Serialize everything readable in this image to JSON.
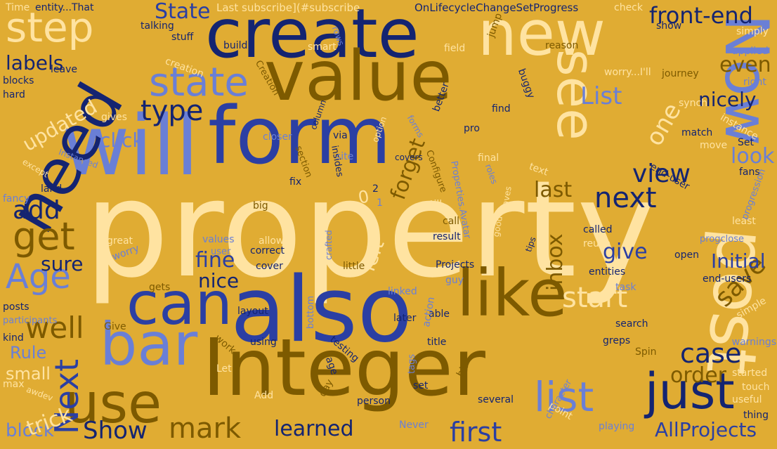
{
  "background_color": "#e0ac33",
  "palette": {
    "dark_navy": "#142471",
    "periwinkle": "#6a7fd6",
    "cream": "#ffe3a1",
    "brown": "#7d5a00",
    "royal_blue": "#2b3fa3"
  },
  "words": [
    "property",
    "also",
    "Integer",
    "will",
    "form",
    "create",
    "value",
    "new",
    "need",
    "like",
    "Now",
    "post",
    "can",
    "bar",
    "see",
    "use",
    "just",
    "step",
    "state",
    "list",
    "mark",
    "Show",
    "first",
    "learned",
    "Next",
    "get",
    "well",
    "Age",
    "add",
    "type",
    "view",
    "next",
    "start",
    "case",
    "save",
    "front-end",
    "State",
    "Initial",
    "AllProjects",
    "order",
    "nice",
    "give",
    "fine",
    "sure",
    "labels",
    "updated",
    "forget",
    "click",
    "look",
    "one",
    "List",
    "even",
    "nicely",
    "left",
    "last",
    "inbox",
    "block",
    "small",
    "trick",
    "Rule",
    "Last subscribe](#subscribe",
    "OnLifecycleChangeSetProgress",
    "entity...That",
    "Time",
    "check",
    "show",
    "simply",
    "applied",
    "right",
    "journey",
    "reason",
    "worry...I'll",
    "synch",
    "instance",
    "match",
    "move",
    "Set",
    "end-user",
    "fans",
    "progression",
    "least",
    "progclose",
    "called",
    "reuse",
    "tips",
    "open",
    "entities",
    "end-users",
    "task",
    "simple",
    "warnings",
    "greps",
    "search",
    "started",
    "touch",
    "useful",
    "thing",
    "playing",
    "point",
    "character",
    "several",
    "person",
    "day",
    "set",
    "Add",
    "Let",
    "Never",
    "tags",
    "bit",
    "title",
    "using",
    "testing",
    "age",
    "work",
    "Give",
    "kind",
    "participants",
    "posts",
    "gets",
    "great",
    "worry",
    "values",
    "user",
    "allow",
    "correct",
    "cover",
    "little",
    "Projects",
    "result",
    "guy",
    "linked",
    "able",
    "action",
    "later",
    "layout",
    "bottom",
    "created",
    "crafted",
    "call",
    "till",
    "big",
    "land",
    "fancy",
    "except",
    "Instanced",
    "blocks",
    "hard",
    "leave",
    "talking",
    "stuff",
    "creation",
    "build",
    "Creation",
    "rows",
    "smart",
    "field",
    "jump",
    "buggy",
    "better",
    "column",
    "via",
    "closer",
    "site",
    "option",
    "forms",
    "pro",
    "find",
    "final",
    "roles",
    "text",
    "Configure",
    "Properties.Avatar",
    "fix",
    "section",
    "insides",
    "covers",
    "2",
    "0",
    "1",
    "gives",
    "max",
    "awdev",
    "Spin",
    "good",
    "saves"
  ]
}
